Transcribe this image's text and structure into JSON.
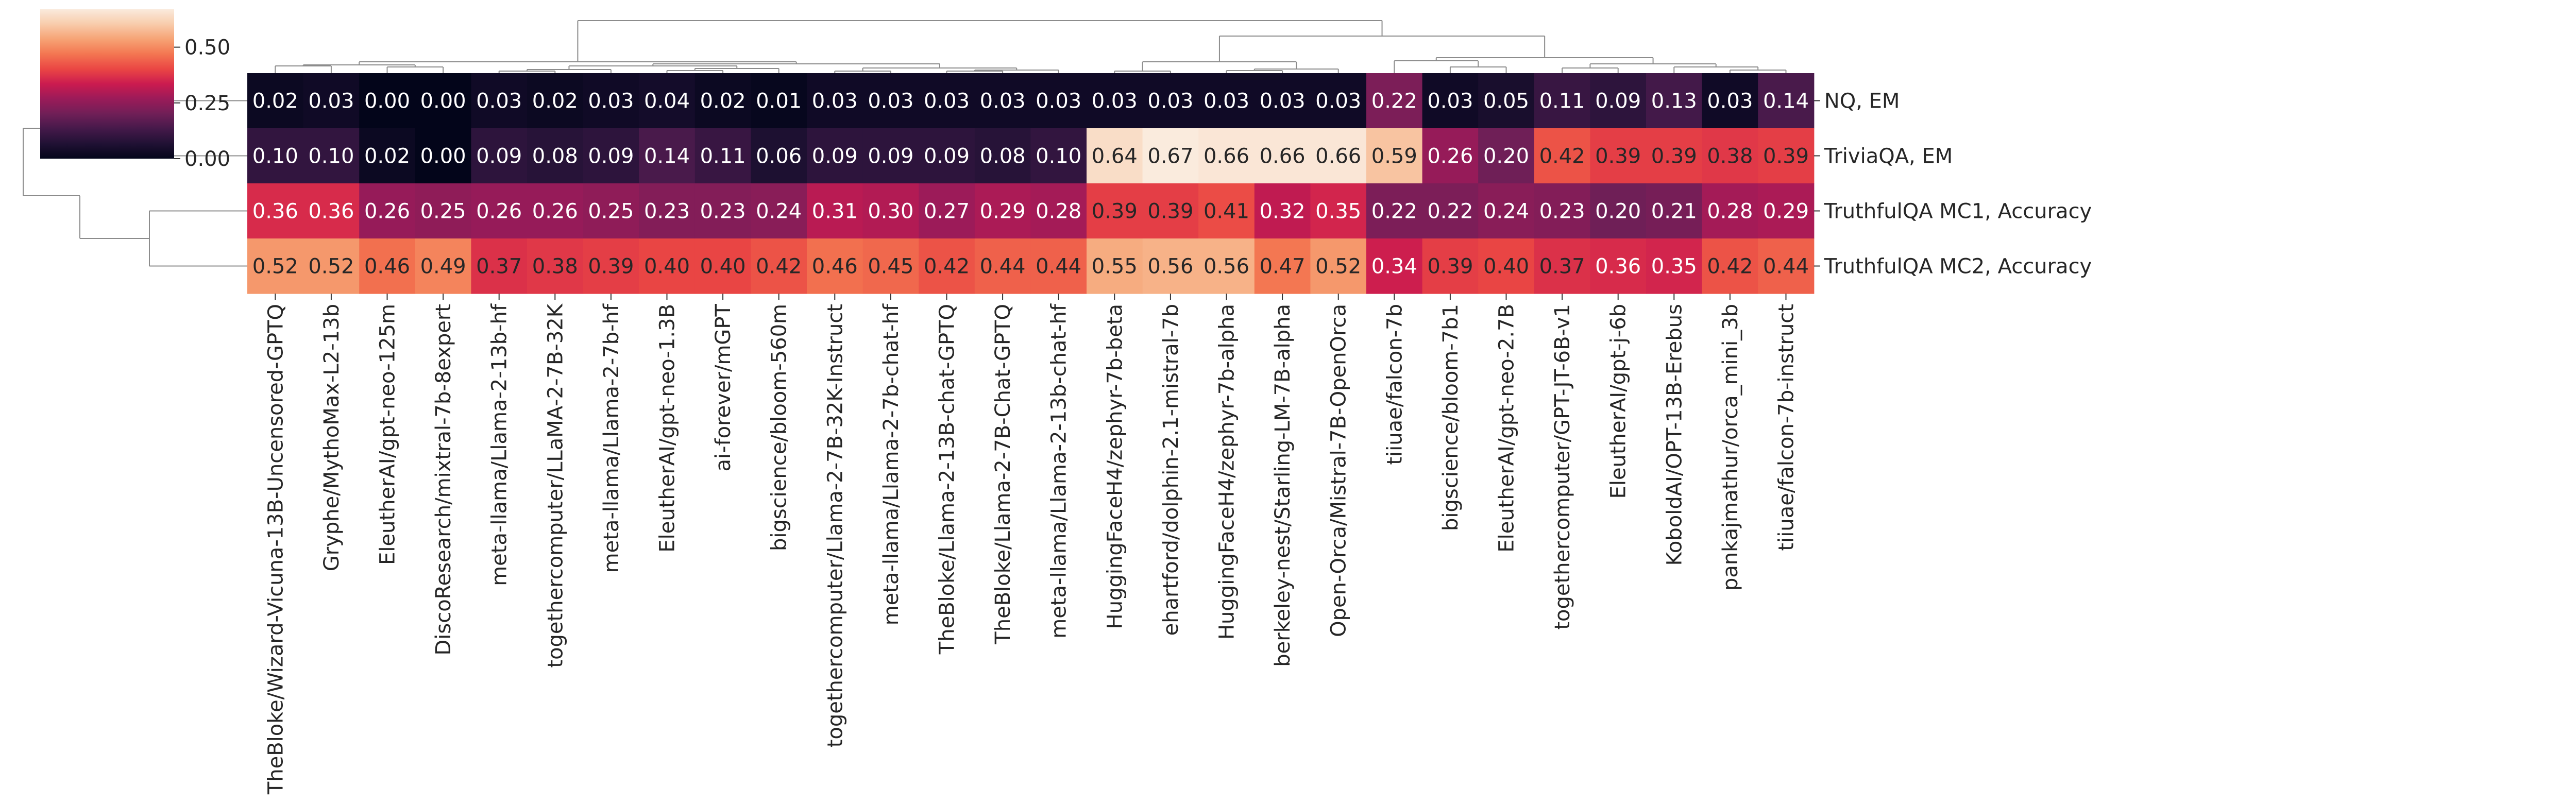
{
  "chart_data": {
    "type": "heatmap",
    "title": "",
    "xlabel": "",
    "ylabel": "",
    "rows": [
      "NQ, EM",
      "TriviaQA, EM",
      "TruthfulQA MC1, Accuracy",
      "TruthfulQA MC2, Accuracy"
    ],
    "columns": [
      "TheBloke/Wizard-Vicuna-13B-Uncensored-GPTQ",
      "Gryphe/MythoMax-L2-13b",
      "EleutherAI/gpt-neo-125m",
      "DiscoResearch/mixtral-7b-8expert",
      "meta-llama/Llama-2-13b-hf",
      "togethercomputer/LLaMA-2-7B-32K",
      "meta-llama/Llama-2-7b-hf",
      "EleutherAI/gpt-neo-1.3B",
      "ai-forever/mGPT",
      "bigscience/bloom-560m",
      "togethercomputer/Llama-2-7B-32K-Instruct",
      "meta-llama/Llama-2-7b-chat-hf",
      "TheBloke/Llama-2-13B-chat-GPTQ",
      "TheBloke/Llama-2-7B-Chat-GPTQ",
      "meta-llama/Llama-2-13b-chat-hf",
      "HuggingFaceH4/zephyr-7b-beta",
      "ehartford/dolphin-2.1-mistral-7b",
      "HuggingFaceH4/zephyr-7b-alpha",
      "berkeley-nest/Starling-LM-7B-alpha",
      "Open-Orca/Mistral-7B-OpenOrca",
      "tiiuae/falcon-7b",
      "bigscience/bloom-7b1",
      "EleutherAI/gpt-neo-2.7B",
      "togethercomputer/GPT-JT-6B-v1",
      "EleutherAI/gpt-j-6b",
      "KoboldAI/OPT-13B-Erebus",
      "pankajmathur/orca_mini_3b",
      "tiiuae/falcon-7b-instruct"
    ],
    "values": [
      [
        0.02,
        0.03,
        0.0,
        0.0,
        0.03,
        0.02,
        0.03,
        0.04,
        0.02,
        0.01,
        0.03,
        0.03,
        0.03,
        0.03,
        0.03,
        0.03,
        0.03,
        0.03,
        0.03,
        0.03,
        0.22,
        0.03,
        0.05,
        0.11,
        0.09,
        0.13,
        0.03,
        0.14
      ],
      [
        0.1,
        0.1,
        0.02,
        0.0,
        0.09,
        0.08,
        0.09,
        0.14,
        0.11,
        0.06,
        0.09,
        0.09,
        0.09,
        0.08,
        0.1,
        0.64,
        0.67,
        0.66,
        0.66,
        0.66,
        0.59,
        0.26,
        0.2,
        0.42,
        0.39,
        0.39,
        0.38,
        0.39
      ],
      [
        0.36,
        0.36,
        0.26,
        0.25,
        0.26,
        0.26,
        0.25,
        0.23,
        0.23,
        0.24,
        0.31,
        0.3,
        0.27,
        0.29,
        0.28,
        0.39,
        0.39,
        0.41,
        0.32,
        0.35,
        0.22,
        0.22,
        0.24,
        0.23,
        0.2,
        0.21,
        0.28,
        0.29
      ],
      [
        0.52,
        0.52,
        0.46,
        0.49,
        0.37,
        0.38,
        0.39,
        0.4,
        0.4,
        0.42,
        0.46,
        0.45,
        0.42,
        0.44,
        0.44,
        0.55,
        0.56,
        0.56,
        0.47,
        0.52,
        0.34,
        0.39,
        0.4,
        0.37,
        0.36,
        0.35,
        0.42,
        0.44
      ]
    ],
    "value_range": [
      0.0,
      0.67
    ],
    "colormap": "rocket",
    "colorbar": {
      "ticks": [
        0.0,
        0.25,
        0.5
      ],
      "tick_labels": [
        "0.00",
        "0.25",
        "0.50"
      ]
    },
    "dendrograms": true,
    "grid": false
  }
}
